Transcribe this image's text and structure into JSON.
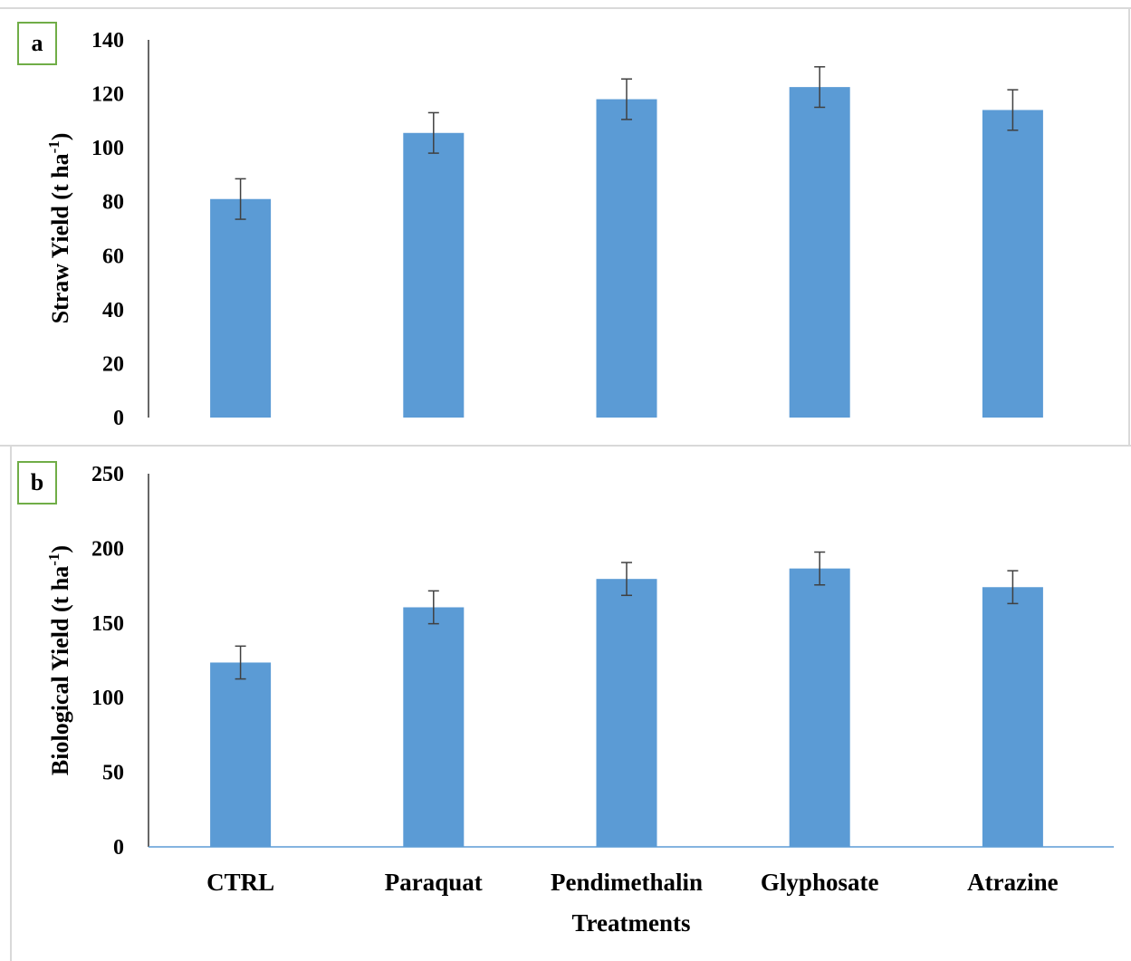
{
  "chart_data": [
    {
      "type": "bar",
      "panel_label": "a",
      "categories": [
        "CTRL",
        "Paraquat",
        "Pendimethalin",
        "Glyphosate",
        "Atrazine"
      ],
      "values": [
        81,
        105.5,
        118,
        122.5,
        114
      ],
      "error": [
        7.5,
        7.5,
        7.5,
        7.5,
        7.5
      ],
      "ylabel_main": "Straw Yield (t ha",
      "ylabel_sup": "-1",
      "ylabel_end": ")",
      "ylim": [
        0,
        140
      ],
      "yticks": [
        "0",
        "20",
        "40",
        "60",
        "80",
        "100",
        "120",
        "140"
      ],
      "color": "#5b9bd5",
      "grid": false
    },
    {
      "type": "bar",
      "panel_label": "b",
      "categories": [
        "CTRL",
        "Paraquat",
        "Pendimethalin",
        "Glyphosate",
        "Atrazine"
      ],
      "values": [
        123.5,
        160.5,
        179.5,
        186.5,
        174
      ],
      "error": [
        11,
        11,
        11,
        11,
        11
      ],
      "ylabel_main": "Biological Yield (t ha",
      "ylabel_sup": "-1",
      "ylabel_end": ")",
      "xlabel": "Treatments",
      "ylim": [
        0,
        250
      ],
      "yticks": [
        "0",
        "50",
        "100",
        "150",
        "200",
        "250"
      ],
      "color": "#5b9bd5",
      "grid": false
    }
  ]
}
